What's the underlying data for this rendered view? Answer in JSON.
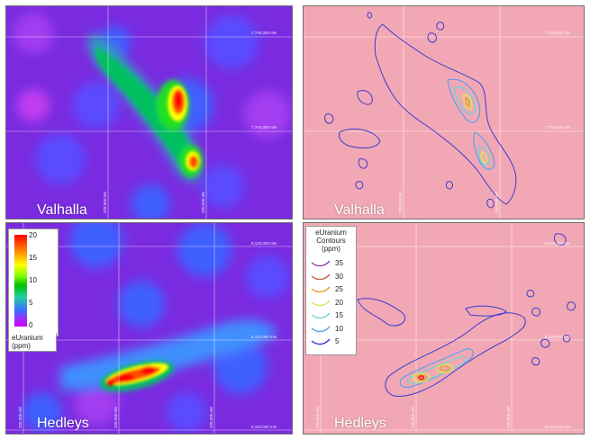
{
  "colors": {
    "background_low": "#8a2be2",
    "background_mid": "#3f5fff",
    "anomaly_high": "#ff0000",
    "contour_background": "#f2a8b4",
    "contour_5": "#3b3bd0",
    "contour_10": "#5aa0e8",
    "contour_15": "#78d0d0",
    "contour_20": "#e0e060",
    "contour_25": "#e8a030",
    "contour_30": "#c06040",
    "contour_35": "#8a4aa0"
  },
  "panels": {
    "valhalla_heat": {
      "site": "Valhalla",
      "northing_labels": [
        "7,746,000 mN",
        "7,744,000 mN"
      ],
      "easting_labels": [
        "328,000 mE",
        "330,000 mE"
      ]
    },
    "valhalla_contour": {
      "site": "Valhalla",
      "northing_labels": [
        "7,746,000 mN",
        "7,744,000 mN"
      ],
      "easting_labels": [
        "328,000 mE",
        "330,000 mE"
      ]
    },
    "hedleys_heat": {
      "site": "Hedleys",
      "northing_labels": [
        "8,120,000 mN",
        "8,115,000 mN",
        "8,110,000 mN"
      ],
      "easting_labels": [
        "325,000 mE",
        "330,000 mE",
        "335,000 mE"
      ]
    },
    "hedleys_contour": {
      "site": "Hedleys",
      "northing_labels": [
        "8,120,000 mN",
        "8,115,000 mN",
        "8,110,000 mN"
      ],
      "easting_labels": [
        "325,000 mE",
        "330,000 mE",
        "335,000 mE"
      ]
    }
  },
  "heat_legend": {
    "title_line1": "eUranium",
    "title_line2": "(ppm)",
    "ticks": [
      "20",
      "15",
      "10",
      "5",
      "0"
    ]
  },
  "contour_legend": {
    "title_line1": "eUranium",
    "title_line2": "Contours",
    "title_line3": "(ppm)",
    "levels": [
      {
        "label": "35",
        "color": "#8a4aa0"
      },
      {
        "label": "30",
        "color": "#c06040"
      },
      {
        "label": "25",
        "color": "#e8a030"
      },
      {
        "label": "20",
        "color": "#e0e060"
      },
      {
        "label": "15",
        "color": "#78d0d0"
      },
      {
        "label": "10",
        "color": "#5aa0e8"
      },
      {
        "label": "5",
        "color": "#3b3bd0"
      }
    ]
  }
}
